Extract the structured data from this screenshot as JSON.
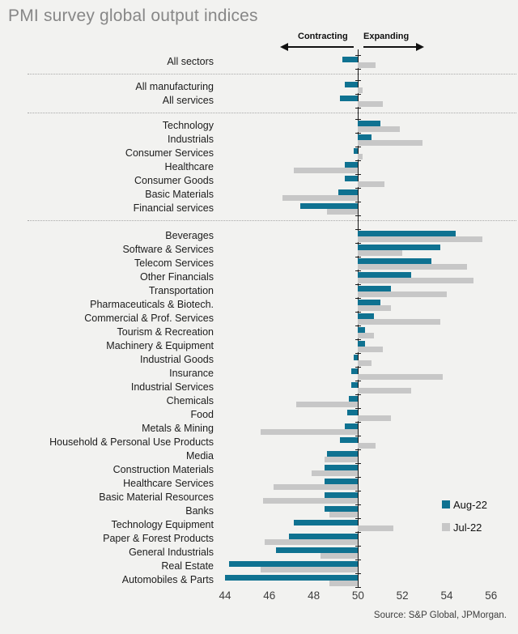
{
  "title": "PMI survey global output indices",
  "header": {
    "contracting": "Contracting",
    "expanding": "Expanding"
  },
  "legend": [
    {
      "label": "Aug-22",
      "color": "#0f7291"
    },
    {
      "label": "Jul-22",
      "color": "#c7c7c7"
    }
  ],
  "source": "Source: S&P Global, JPMorgan.",
  "chart_data": {
    "type": "bar",
    "orientation": "horizontal",
    "baseline": 50,
    "xlim": [
      44,
      56
    ],
    "xticks": [
      44,
      46,
      48,
      50,
      52,
      54,
      56
    ],
    "series_names": [
      "Aug-22",
      "Jul-22"
    ],
    "colors": {
      "aug": "#0f7291",
      "jul": "#c7c7c7"
    },
    "groups": [
      {
        "rows": [
          {
            "label": "All sectors",
            "aug": 49.3,
            "jul": 50.8
          }
        ]
      },
      {
        "rows": [
          {
            "label": "All manufacturing",
            "aug": 49.4,
            "jul": 50.2
          },
          {
            "label": "All services",
            "aug": 49.2,
            "jul": 51.1
          }
        ]
      },
      {
        "rows": [
          {
            "label": "Technology",
            "aug": 51.0,
            "jul": 51.9
          },
          {
            "label": "Industrials",
            "aug": 50.6,
            "jul": 52.9
          },
          {
            "label": "Consumer Services",
            "aug": 49.8,
            "jul": 50.2
          },
          {
            "label": "Healthcare",
            "aug": 49.4,
            "jul": 47.1
          },
          {
            "label": "Consumer Goods",
            "aug": 49.4,
            "jul": 51.2
          },
          {
            "label": "Basic Materials",
            "aug": 49.1,
            "jul": 46.6
          },
          {
            "label": "Financial services",
            "aug": 47.4,
            "jul": 48.6
          }
        ]
      },
      {
        "rows": [
          {
            "label": "Beverages",
            "aug": 54.4,
            "jul": 55.6
          },
          {
            "label": "Software & Services",
            "aug": 53.7,
            "jul": 52.0
          },
          {
            "label": "Telecom Services",
            "aug": 53.3,
            "jul": 54.9
          },
          {
            "label": "Other Financials",
            "aug": 52.4,
            "jul": 55.2
          },
          {
            "label": "Transportation",
            "aug": 51.5,
            "jul": 54.0
          },
          {
            "label": "Pharmaceuticals & Biotech.",
            "aug": 51.0,
            "jul": 51.5
          },
          {
            "label": "Commercial & Prof. Services",
            "aug": 50.7,
            "jul": 53.7
          },
          {
            "label": "Tourism & Recreation",
            "aug": 50.3,
            "jul": 50.7
          },
          {
            "label": "Machinery & Equipment",
            "aug": 50.3,
            "jul": 51.1
          },
          {
            "label": "Industrial Goods",
            "aug": 49.8,
            "jul": 50.6
          },
          {
            "label": "Insurance",
            "aug": 49.7,
            "jul": 53.8
          },
          {
            "label": "Industrial Services",
            "aug": 49.7,
            "jul": 52.4
          },
          {
            "label": "Chemicals",
            "aug": 49.6,
            "jul": 47.2
          },
          {
            "label": "Food",
            "aug": 49.5,
            "jul": 51.5
          },
          {
            "label": "Metals & Mining",
            "aug": 49.4,
            "jul": 45.6
          },
          {
            "label": "Household & Personal Use Products",
            "aug": 49.2,
            "jul": 50.8
          },
          {
            "label": "Media",
            "aug": 48.6,
            "jul": 48.5
          },
          {
            "label": "Construction Materials",
            "aug": 48.5,
            "jul": 47.9
          },
          {
            "label": "Healthcare Services",
            "aug": 48.5,
            "jul": 46.2
          },
          {
            "label": "Basic Material Resources",
            "aug": 48.5,
            "jul": 45.7
          },
          {
            "label": "Banks",
            "aug": 48.5,
            "jul": 48.7
          },
          {
            "label": "Technology Equipment",
            "aug": 47.1,
            "jul": 51.6
          },
          {
            "label": "Paper & Forest Products",
            "aug": 46.9,
            "jul": 45.8
          },
          {
            "label": "General Industrials",
            "aug": 46.3,
            "jul": 48.3
          },
          {
            "label": "Real Estate",
            "aug": 44.2,
            "jul": 45.6
          },
          {
            "label": "Automobiles & Parts",
            "aug": 44.0,
            "jul": 48.7
          }
        ]
      }
    ]
  }
}
